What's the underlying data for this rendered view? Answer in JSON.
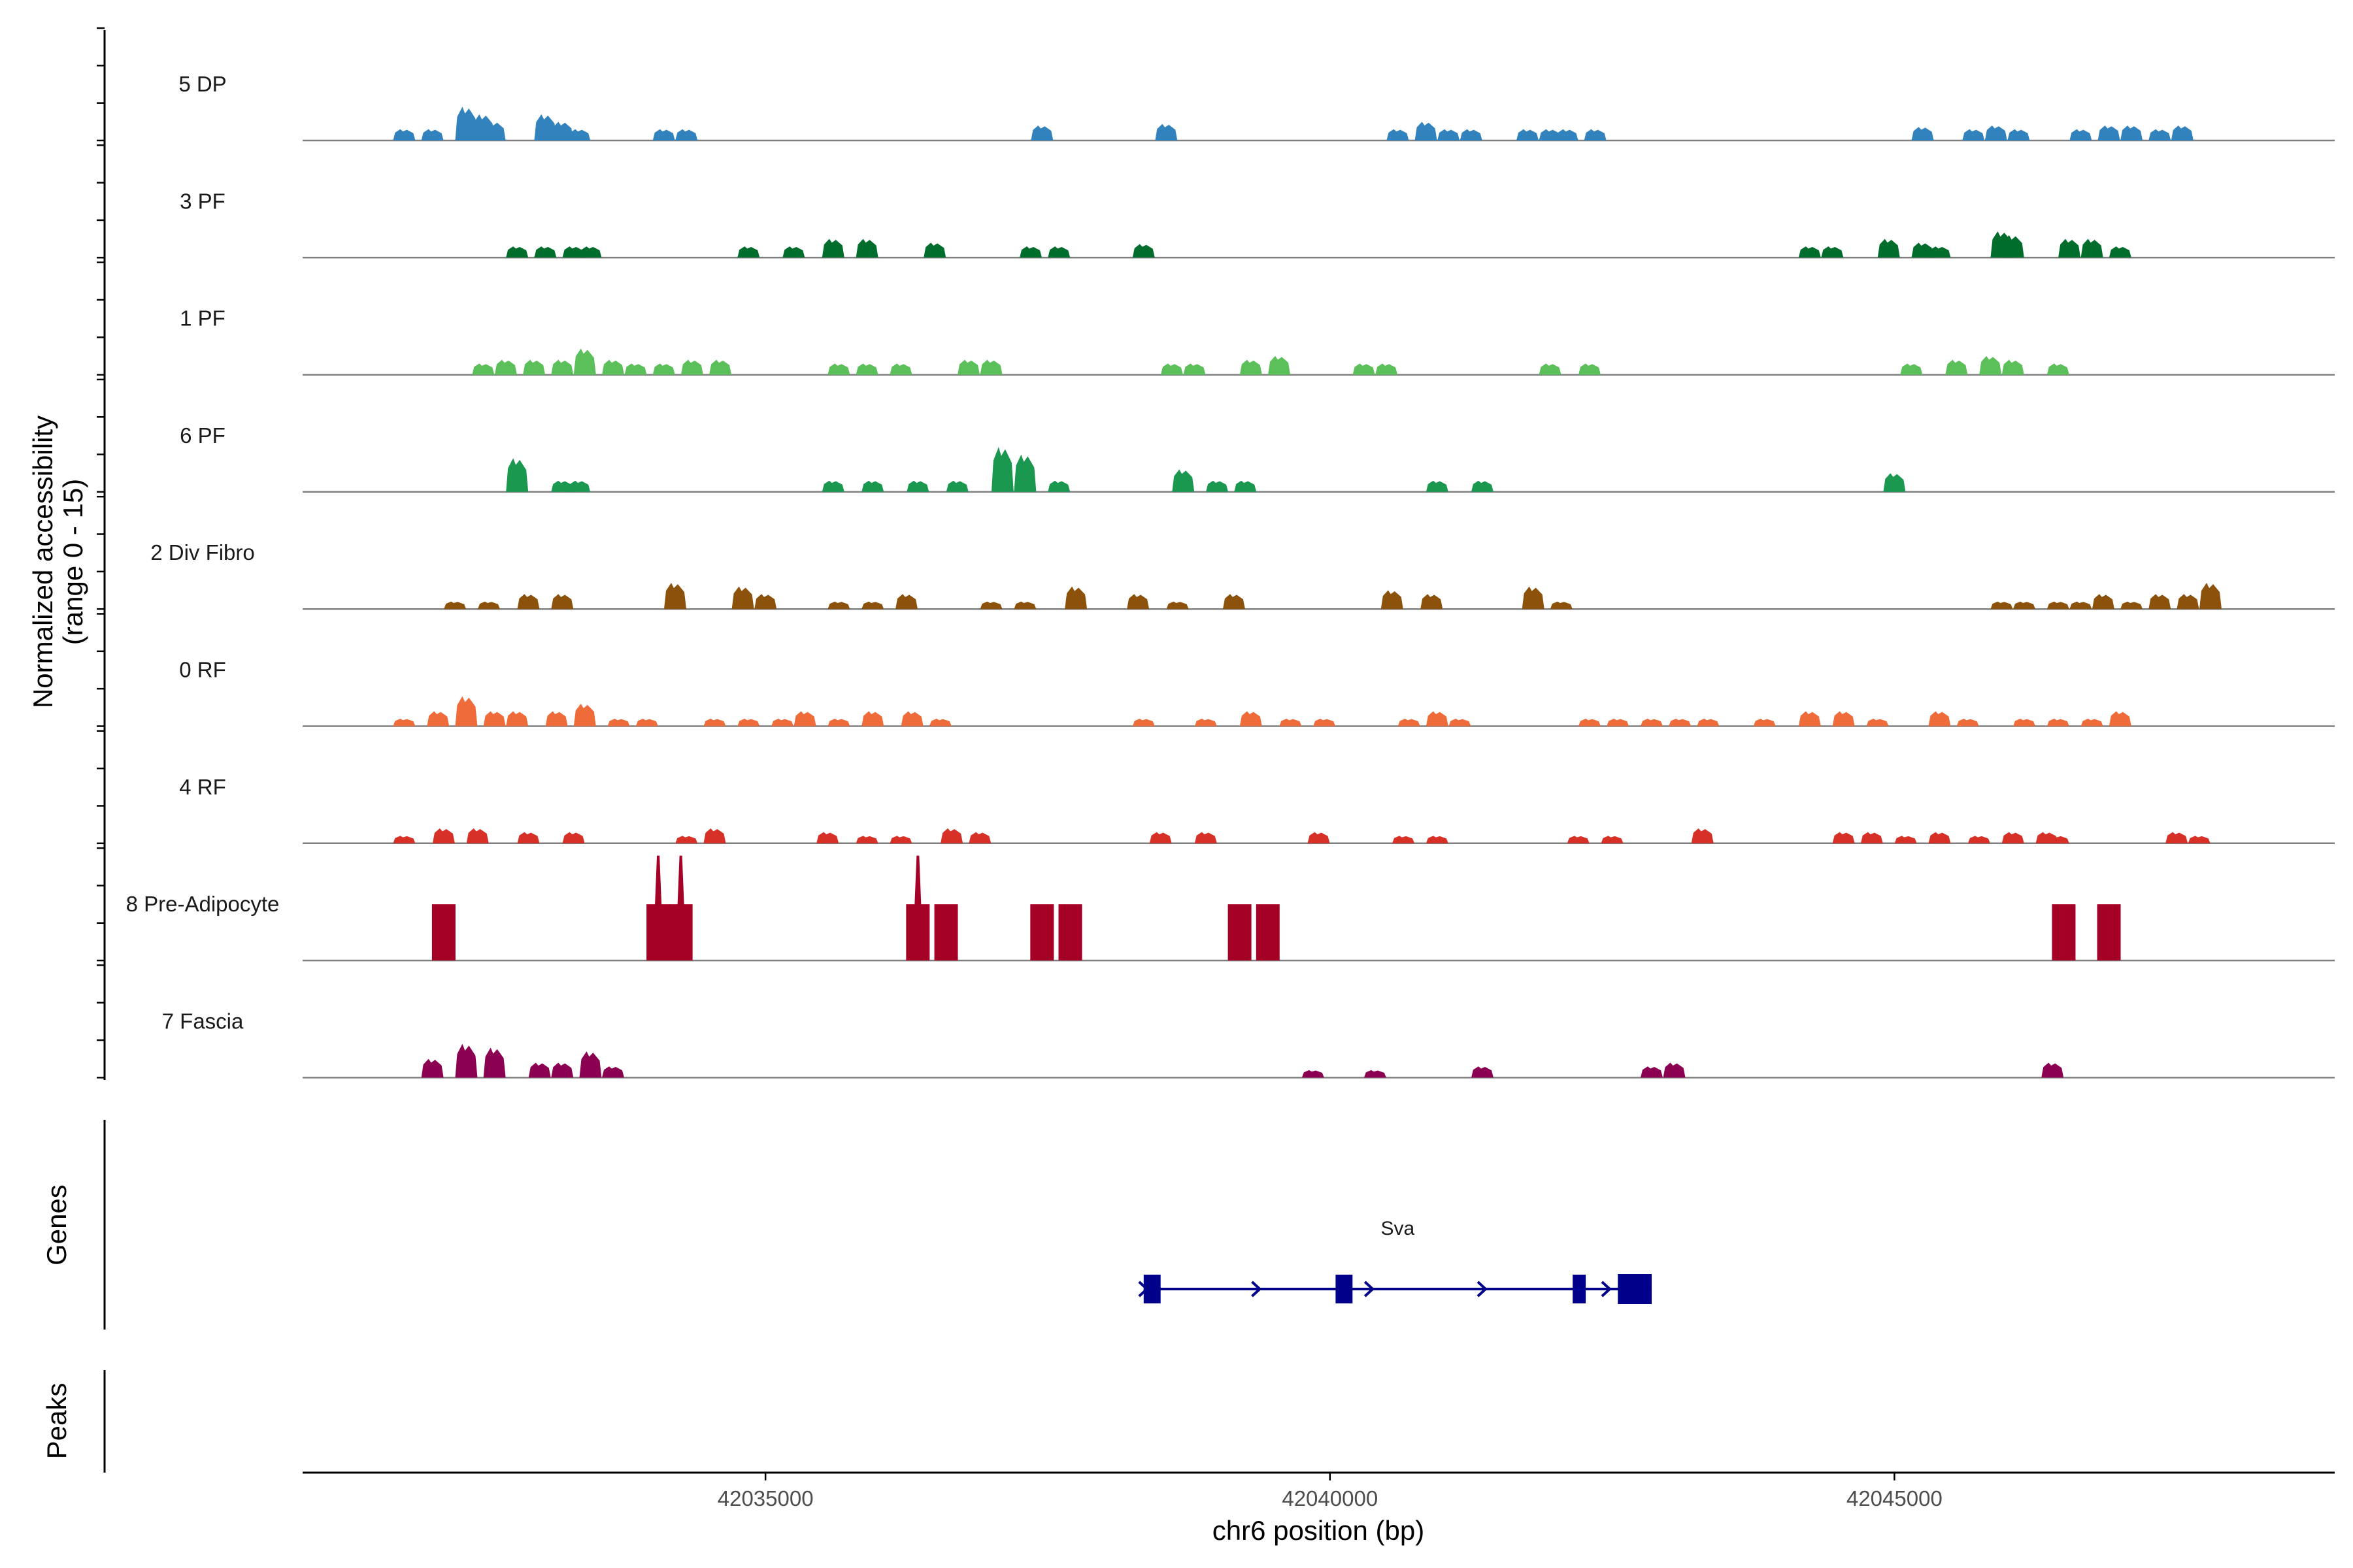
{
  "chart_data": {
    "type": "area",
    "description_axis": "genomic coverage tracks",
    "y_axis_label_line1": "Normalized accessibility",
    "y_axis_label_line2": "(range 0 - 15)",
    "y_range": [
      0,
      15
    ],
    "x_label": "chr6 position (bp)",
    "x_range": [
      42030900,
      42048900
    ],
    "x_ticks": [
      42035000,
      42040000,
      42045000
    ],
    "x_tick_labels": [
      "42035000",
      "42040000",
      "42045000"
    ],
    "panel_labels": {
      "genes": "Genes",
      "peaks": "Peaks"
    },
    "tracks": [
      {
        "name": "5 DP",
        "color": "#3182bd",
        "peaks": [
          [
            42031800,
            1.5
          ],
          [
            42032050,
            1.5
          ],
          [
            42032350,
            4.5
          ],
          [
            42032500,
            3.5
          ],
          [
            42032600,
            2.5
          ],
          [
            42033050,
            3.5
          ],
          [
            42033200,
            2.5
          ],
          [
            42033350,
            1.5
          ],
          [
            42034100,
            1.5
          ],
          [
            42034300,
            1.5
          ],
          [
            42037450,
            2
          ],
          [
            42038550,
            2.2
          ],
          [
            42040600,
            1.5
          ],
          [
            42040850,
            2.5
          ],
          [
            42041050,
            1.5
          ],
          [
            42041250,
            1.5
          ],
          [
            42041750,
            1.5
          ],
          [
            42041950,
            1.5
          ],
          [
            42042100,
            1.5
          ],
          [
            42042350,
            1.5
          ],
          [
            42045250,
            1.8
          ],
          [
            42045700,
            1.5
          ],
          [
            42045900,
            2
          ],
          [
            42046100,
            1.5
          ],
          [
            42046650,
            1.5
          ],
          [
            42046900,
            2
          ],
          [
            42047100,
            2
          ],
          [
            42047350,
            1.5
          ],
          [
            42047550,
            2
          ]
        ]
      },
      {
        "name": "3 PF",
        "color": "#006d2c",
        "peaks": [
          [
            42032800,
            1.5
          ],
          [
            42033050,
            1.5
          ],
          [
            42033300,
            1.5
          ],
          [
            42033450,
            1.5
          ],
          [
            42034850,
            1.5
          ],
          [
            42035250,
            1.5
          ],
          [
            42035600,
            2.5
          ],
          [
            42035900,
            2.5
          ],
          [
            42036500,
            2
          ],
          [
            42037350,
            1.5
          ],
          [
            42037600,
            1.5
          ],
          [
            42038350,
            1.8
          ],
          [
            42044250,
            1.5
          ],
          [
            42044450,
            1.5
          ],
          [
            42044950,
            2.5
          ],
          [
            42045250,
            2
          ],
          [
            42045400,
            1.5
          ],
          [
            42045950,
            3.5
          ],
          [
            42046050,
            3
          ],
          [
            42046550,
            2.5
          ],
          [
            42046750,
            2.5
          ],
          [
            42047000,
            1.5
          ]
        ]
      },
      {
        "name": "1 PF",
        "color": "#5bbf5a",
        "peaks": [
          [
            42032500,
            1.5
          ],
          [
            42032700,
            2
          ],
          [
            42032950,
            2
          ],
          [
            42033200,
            2
          ],
          [
            42033400,
            3.5
          ],
          [
            42033650,
            2
          ],
          [
            42033850,
            1.5
          ],
          [
            42034100,
            1.5
          ],
          [
            42034350,
            2
          ],
          [
            42034600,
            2
          ],
          [
            42035650,
            1.5
          ],
          [
            42035900,
            1.5
          ],
          [
            42036200,
            1.5
          ],
          [
            42036800,
            2
          ],
          [
            42037000,
            2
          ],
          [
            42038600,
            1.5
          ],
          [
            42038800,
            1.5
          ],
          [
            42039300,
            2
          ],
          [
            42039550,
            2.5
          ],
          [
            42040300,
            1.5
          ],
          [
            42040500,
            1.5
          ],
          [
            42041950,
            1.5
          ],
          [
            42042300,
            1.5
          ],
          [
            42045150,
            1.5
          ],
          [
            42045550,
            2
          ],
          [
            42045850,
            2.5
          ],
          [
            42046050,
            2
          ],
          [
            42046450,
            1.5
          ]
        ]
      },
      {
        "name": "6 PF",
        "color": "#1a9850",
        "peaks": [
          [
            42032800,
            4.5
          ],
          [
            42033200,
            1.5
          ],
          [
            42033350,
            1.5
          ],
          [
            42035600,
            1.5
          ],
          [
            42035950,
            1.5
          ],
          [
            42036350,
            1.5
          ],
          [
            42036700,
            1.5
          ],
          [
            42037100,
            6
          ],
          [
            42037300,
            5
          ],
          [
            42037600,
            1.5
          ],
          [
            42038700,
            3
          ],
          [
            42039000,
            1.5
          ],
          [
            42039250,
            1.5
          ],
          [
            42040950,
            1.5
          ],
          [
            42041350,
            1.5
          ],
          [
            42045000,
            2.5
          ]
        ]
      },
      {
        "name": "2 Div Fibro",
        "color": "#8c510a",
        "peaks": [
          [
            42032250,
            1
          ],
          [
            42032550,
            1
          ],
          [
            42032900,
            2
          ],
          [
            42033200,
            2
          ],
          [
            42034200,
            3.5
          ],
          [
            42034800,
            3
          ],
          [
            42035000,
            2
          ],
          [
            42035650,
            1
          ],
          [
            42035950,
            1
          ],
          [
            42036250,
            2
          ],
          [
            42037000,
            1
          ],
          [
            42037300,
            1
          ],
          [
            42037750,
            3
          ],
          [
            42038300,
            2
          ],
          [
            42038650,
            1
          ],
          [
            42039150,
            2
          ],
          [
            42040550,
            2.5
          ],
          [
            42040900,
            2
          ],
          [
            42041800,
            3
          ],
          [
            42042050,
            1
          ],
          [
            42045950,
            1
          ],
          [
            42046150,
            1
          ],
          [
            42046450,
            1
          ],
          [
            42046650,
            1
          ],
          [
            42046850,
            2
          ],
          [
            42047100,
            1
          ],
          [
            42047350,
            2
          ],
          [
            42047600,
            2
          ],
          [
            42047800,
            3.5
          ]
        ]
      },
      {
        "name": "0 RF",
        "color": "#ef6c3a",
        "peaks": [
          [
            42031800,
            1
          ],
          [
            42032100,
            2
          ],
          [
            42032350,
            4
          ],
          [
            42032600,
            2
          ],
          [
            42032800,
            2
          ],
          [
            42033150,
            2
          ],
          [
            42033400,
            3
          ],
          [
            42033700,
            1
          ],
          [
            42033950,
            1
          ],
          [
            42034550,
            1
          ],
          [
            42034850,
            1
          ],
          [
            42035150,
            1
          ],
          [
            42035350,
            2
          ],
          [
            42035650,
            1
          ],
          [
            42035950,
            2
          ],
          [
            42036300,
            2
          ],
          [
            42036550,
            1
          ],
          [
            42038350,
            1
          ],
          [
            42038900,
            1
          ],
          [
            42039300,
            2
          ],
          [
            42039650,
            1
          ],
          [
            42039950,
            1
          ],
          [
            42040700,
            1
          ],
          [
            42040950,
            2
          ],
          [
            42041150,
            1
          ],
          [
            42042300,
            1
          ],
          [
            42042550,
            1
          ],
          [
            42042850,
            1
          ],
          [
            42043100,
            1
          ],
          [
            42043350,
            1
          ],
          [
            42043850,
            1
          ],
          [
            42044250,
            2
          ],
          [
            42044550,
            2
          ],
          [
            42044850,
            1
          ],
          [
            42045400,
            2
          ],
          [
            42045650,
            1
          ],
          [
            42046150,
            1
          ],
          [
            42046450,
            1
          ],
          [
            42046750,
            1
          ],
          [
            42047000,
            2
          ]
        ]
      },
      {
        "name": "4 RF",
        "color": "#d73027",
        "peaks": [
          [
            42031800,
            1
          ],
          [
            42032150,
            2
          ],
          [
            42032450,
            2
          ],
          [
            42032900,
            1.5
          ],
          [
            42033300,
            1.5
          ],
          [
            42034300,
            1
          ],
          [
            42034550,
            2
          ],
          [
            42035550,
            1.5
          ],
          [
            42035900,
            1
          ],
          [
            42036200,
            1
          ],
          [
            42036650,
            2
          ],
          [
            42036900,
            1.5
          ],
          [
            42038500,
            1.5
          ],
          [
            42038900,
            1.5
          ],
          [
            42039900,
            1.5
          ],
          [
            42040650,
            1
          ],
          [
            42040950,
            1
          ],
          [
            42042200,
            1
          ],
          [
            42042500,
            1
          ],
          [
            42043300,
            2
          ],
          [
            42044550,
            1.5
          ],
          [
            42044800,
            1.5
          ],
          [
            42045100,
            1
          ],
          [
            42045400,
            1.5
          ],
          [
            42045750,
            1
          ],
          [
            42046050,
            1.5
          ],
          [
            42046350,
            1.5
          ],
          [
            42046450,
            1
          ],
          [
            42047500,
            1.5
          ],
          [
            42047700,
            1
          ]
        ]
      },
      {
        "name": "8 Pre-Adipocyte",
        "color": "#a50026",
        "peaks": [
          [
            42032150,
            7.5
          ],
          [
            42034050,
            14
          ],
          [
            42034250,
            14
          ],
          [
            42036350,
            14
          ],
          [
            42036600,
            7.5
          ],
          [
            42037450,
            7.5
          ],
          [
            42037700,
            7.5
          ],
          [
            42039200,
            7.5
          ],
          [
            42039450,
            7.5
          ],
          [
            42046500,
            7.5
          ],
          [
            42046900,
            7.5
          ]
        ]
      },
      {
        "name": "7 Fascia",
        "color": "#8c0052",
        "peaks": [
          [
            42032050,
            2.5
          ],
          [
            42032350,
            4.5
          ],
          [
            42032600,
            4
          ],
          [
            42033000,
            2
          ],
          [
            42033200,
            2
          ],
          [
            42033450,
            3.5
          ],
          [
            42033650,
            1.5
          ],
          [
            42039850,
            1
          ],
          [
            42040400,
            1
          ],
          [
            42041350,
            1.5
          ],
          [
            42042850,
            1.5
          ],
          [
            42043050,
            2
          ],
          [
            42046400,
            2
          ]
        ]
      }
    ],
    "gene": {
      "name": "Sva",
      "strand": "+",
      "color": "#00008b",
      "start": 42038350,
      "end": 42042850,
      "exons": [
        [
          42038350,
          42038500
        ],
        [
          42040050,
          42040200
        ],
        [
          42042150,
          42042250
        ],
        [
          42042550,
          42042850
        ]
      ],
      "arrows": [
        42038350,
        42039350,
        42040350,
        42041350,
        42042450
      ]
    }
  }
}
